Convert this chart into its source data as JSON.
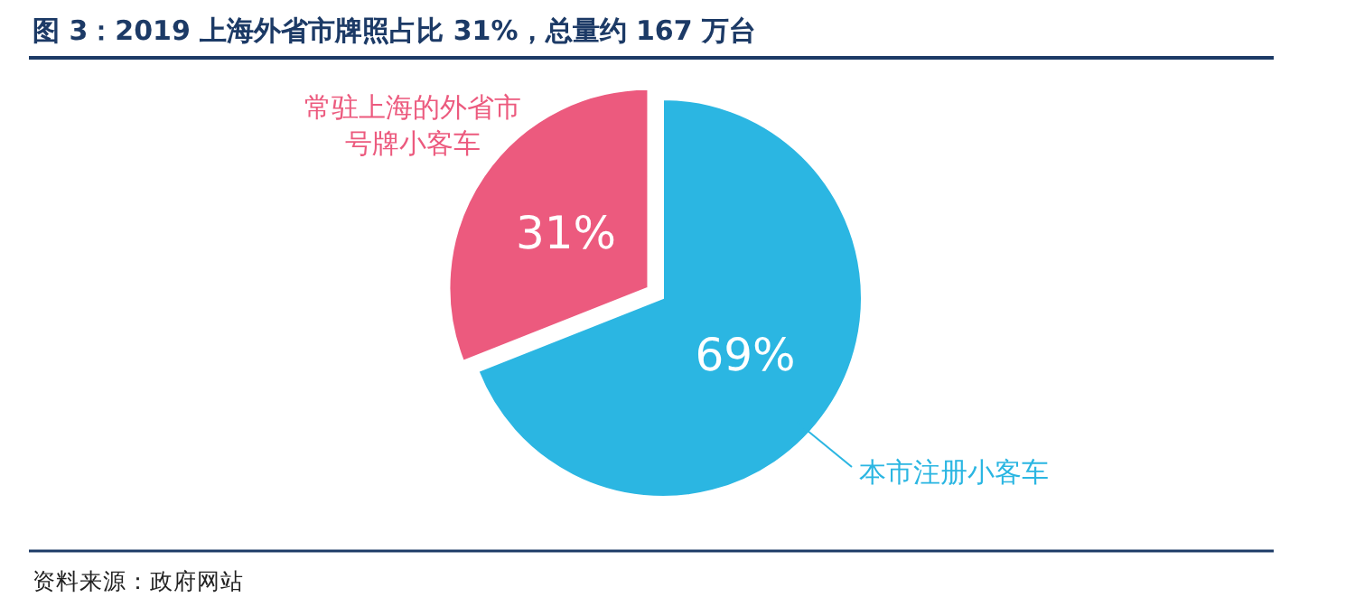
{
  "chart_data": {
    "type": "pie",
    "title": "图 3：2019 上海外省市牌照占比 31%，总量约 167 万台",
    "categories": [
      "本市注册小客车",
      "常驻上海的外省市号牌小客车"
    ],
    "values": [
      69,
      31
    ],
    "colors": [
      "#2bb6e2",
      "#ec5a7e"
    ],
    "value_labels": [
      "69%",
      "31%"
    ],
    "annotations": [
      "资料来源：政府网站"
    ]
  }
}
